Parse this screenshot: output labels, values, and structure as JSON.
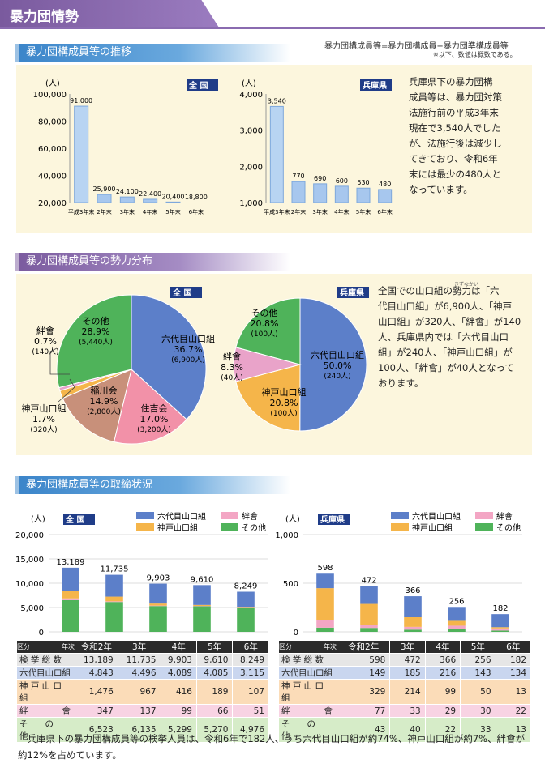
{
  "page": {
    "title": "暴力団情勢",
    "footer": "兵庫県下の暴力団構成員等の検挙人員は、令和6年で182人、うち六代目山口組が約74%、神戸山口組が約7%、絆會が約12%を占めています。"
  },
  "section1": {
    "heading": "暴力団構成員等の推移",
    "note1": "暴力団構成員等=暴力団構成員+暴力団準構成員等",
    "note2": "※以下、数値は概数である。",
    "text": [
      "兵庫県下の暴力団構",
      "成員等は、暴力団対策",
      "法施行前の平成3年末",
      "現在で3,540人でした",
      "が、法施行後は減少し",
      "てきており、令和6年",
      "末には最少の480人と",
      "なっています。"
    ]
  },
  "section2": {
    "heading": "暴力団構成員等の勢力分布",
    "text": [
      "全国での山口組の勢力は「六",
      "代目山口組」が6,900人、「神戸",
      "山口組」が320人、「絆會」が140",
      "人、兵庫県内では「六代目山口",
      "組」が240人、「神戸山口組」が",
      "100人、「絆會」が40人となって",
      "おります。"
    ],
    "ruby": "きずなかい"
  },
  "section3": {
    "heading": "暴力団構成員等の取締状況"
  },
  "chart_data": [
    {
      "type": "bar",
      "tag": "全 国",
      "ylabel": "(人)",
      "categories": [
        "平成3年末",
        "2年末",
        "3年末",
        "4年末",
        "5年末",
        "6年末"
      ],
      "values": [
        91000,
        25900,
        24100,
        22400,
        20400,
        18800
      ],
      "labels": [
        "91,000",
        "25,900",
        "24,100",
        "22,400",
        "20,400",
        "18,800"
      ],
      "yticks": [
        "100,000",
        "80,000",
        "60,000",
        "40,000",
        "20,000"
      ],
      "ylim": [
        20000,
        100000
      ]
    },
    {
      "type": "bar",
      "tag": "兵庫県",
      "ylabel": "(人)",
      "categories": [
        "平成3年末",
        "2年末",
        "3年末",
        "4年末",
        "5年末",
        "6年末"
      ],
      "values": [
        3540,
        770,
        690,
        600,
        530,
        480
      ],
      "labels": [
        "3,540",
        "770",
        "690",
        "600",
        "530",
        "480"
      ],
      "yticks": [
        "4,000",
        "3,000",
        "2,000",
        "1,000"
      ],
      "ylim": [
        0,
        4000
      ]
    },
    {
      "type": "pie",
      "tag": "全 国",
      "slices": [
        {
          "name": "六代目山口組",
          "pct": "36.7%",
          "count": "(6,900人)",
          "value": 36.7,
          "color": "#5c7fc9"
        },
        {
          "name": "住吉会",
          "pct": "17.0%",
          "count": "(3,200人)",
          "value": 17.0,
          "color": "#f291a8"
        },
        {
          "name": "稲川会",
          "pct": "14.9%",
          "count": "(2,800人)",
          "value": 14.9,
          "color": "#c8907a"
        },
        {
          "name": "神戸山口組",
          "pct": "1.7%",
          "count": "(320人)",
          "value": 1.7,
          "color": "#f5b54a"
        },
        {
          "name": "絆會",
          "pct": "0.7%",
          "count": "(140人)",
          "value": 0.7,
          "color": "#e9a3c9"
        },
        {
          "name": "その他",
          "pct": "28.9%",
          "count": "(5,440人)",
          "value": 28.9,
          "color": "#4fb35a"
        }
      ]
    },
    {
      "type": "pie",
      "tag": "兵庫県",
      "slices": [
        {
          "name": "六代目山口組",
          "pct": "50.0%",
          "count": "(240人)",
          "value": 50.0,
          "color": "#5c7fc9"
        },
        {
          "name": "神戸山口組",
          "pct": "20.8%",
          "count": "(100人)",
          "value": 20.8,
          "color": "#f5b54a"
        },
        {
          "name": "絆會",
          "pct": "8.3%",
          "count": "(40人)",
          "value": 8.3,
          "color": "#e9a3c9"
        },
        {
          "name": "その他",
          "pct": "20.8%",
          "count": "(100人)",
          "value": 20.8,
          "color": "#4fb35a"
        }
      ]
    },
    {
      "type": "bar",
      "stacked": true,
      "tag": "全 国",
      "ylabel": "(人)",
      "yticks": [
        "20,000",
        "15,000",
        "10,000",
        "5,000",
        "0"
      ],
      "ylim": [
        0,
        20000
      ],
      "categories": [
        "令和2年",
        "3年",
        "4年",
        "5年",
        "6年"
      ],
      "totals": [
        "13,189",
        "11,735",
        "9,903",
        "9,610",
        "8,249"
      ],
      "series": [
        {
          "name": "六代目山口組",
          "color": "#5c7fc9",
          "values": [
            4843,
            4496,
            4089,
            4085,
            3115
          ]
        },
        {
          "name": "神戸山口組",
          "color": "#f5b54a",
          "values": [
            1476,
            967,
            416,
            189,
            107
          ]
        },
        {
          "name": "絆會",
          "color": "#f3a6c4",
          "values": [
            347,
            137,
            99,
            66,
            51
          ]
        },
        {
          "name": "その他",
          "color": "#4fb35a",
          "values": [
            6523,
            6135,
            5299,
            5270,
            4976
          ]
        }
      ]
    },
    {
      "type": "bar",
      "stacked": true,
      "tag": "兵庫県",
      "ylabel": "(人)",
      "yticks": [
        "1,000",
        "500",
        "0"
      ],
      "ylim": [
        0,
        1000
      ],
      "categories": [
        "令和2年",
        "3年",
        "4年",
        "5年",
        "6年"
      ],
      "totals": [
        "598",
        "472",
        "366",
        "256",
        "182"
      ],
      "series": [
        {
          "name": "六代目山口組",
          "color": "#5c7fc9",
          "values": [
            149,
            185,
            216,
            143,
            134
          ]
        },
        {
          "name": "神戸山口組",
          "color": "#f5b54a",
          "values": [
            329,
            214,
            99,
            50,
            13
          ]
        },
        {
          "name": "絆會",
          "color": "#f3a6c4",
          "values": [
            77,
            33,
            29,
            30,
            22
          ]
        },
        {
          "name": "その他",
          "color": "#4fb35a",
          "values": [
            43,
            40,
            22,
            33,
            13
          ]
        }
      ]
    }
  ],
  "tables": [
    {
      "corner_left": "区分",
      "corner_right": "年次",
      "cols": [
        "令和2年",
        "3年",
        "4年",
        "5年",
        "6年"
      ],
      "rows": [
        {
          "label": "検 挙 総 数",
          "values": [
            "13,189",
            "11,735",
            "9,903",
            "9,610",
            "8,249"
          ]
        },
        {
          "label": "六代目山口組",
          "values": [
            "4,843",
            "4,496",
            "4,089",
            "4,085",
            "3,115"
          ]
        },
        {
          "label": "神 戸 山 口 組",
          "values": [
            "1,476",
            "967",
            "416",
            "189",
            "107"
          ]
        },
        {
          "label": "絆　　　　會",
          "values": [
            "347",
            "137",
            "99",
            "66",
            "51"
          ]
        },
        {
          "label": "そ　　の　　他",
          "values": [
            "6,523",
            "6,135",
            "5,299",
            "5,270",
            "4,976"
          ]
        }
      ]
    },
    {
      "corner_left": "区分",
      "corner_right": "年次",
      "cols": [
        "令和2年",
        "3年",
        "4年",
        "5年",
        "6年"
      ],
      "rows": [
        {
          "label": "検 挙 総 数",
          "values": [
            "598",
            "472",
            "366",
            "256",
            "182"
          ]
        },
        {
          "label": "六代目山口組",
          "values": [
            "149",
            "185",
            "216",
            "143",
            "134"
          ]
        },
        {
          "label": "神 戸 山 口 組",
          "values": [
            "329",
            "214",
            "99",
            "50",
            "13"
          ]
        },
        {
          "label": "絆　　　　會",
          "values": [
            "77",
            "33",
            "29",
            "30",
            "22"
          ]
        },
        {
          "label": "そ　　の　　他",
          "values": [
            "43",
            "40",
            "22",
            "33",
            "13"
          ]
        }
      ]
    }
  ]
}
